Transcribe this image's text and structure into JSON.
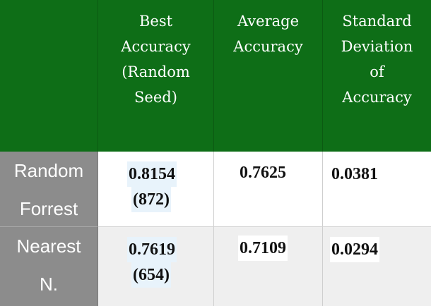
{
  "table": {
    "header": {
      "best_accuracy": [
        "Best",
        "Accuracy",
        "(Random",
        "Seed)"
      ],
      "average_accuracy": [
        "Average",
        "Accuracy"
      ],
      "std_dev_accuracy": [
        "Standard",
        "Deviation",
        "of",
        "Accuracy"
      ]
    },
    "rows": [
      {
        "label": [
          "Random",
          "Forrest"
        ],
        "best_value": "0.8154",
        "best_seed": "(872)",
        "average": "0.7625",
        "std_dev": "0.0381"
      },
      {
        "label": [
          "Nearest",
          "N."
        ],
        "best_value": "0.7619",
        "best_seed": "(654)",
        "average": "0.7109",
        "std_dev": "0.0294"
      }
    ],
    "colors": {
      "header_bg": "#0e6e17",
      "row_label_bg": "#8c8c8c",
      "row_alt_bg": "#efefef",
      "highlight_bg": "#e8f3fb"
    }
  }
}
